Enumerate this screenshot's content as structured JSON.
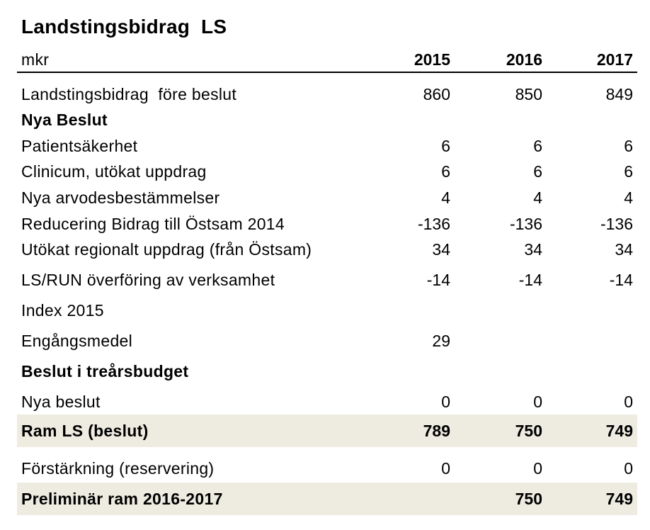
{
  "title": "Landstingsbidrag  LS",
  "header": {
    "label": "mkr",
    "years": [
      "2015",
      "2016",
      "2017"
    ]
  },
  "rows": [
    {
      "label": "Landstingsbidrag  före beslut",
      "values": [
        "860",
        "850",
        "849"
      ]
    },
    {
      "label": "Nya Beslut",
      "values": [
        "",
        "",
        ""
      ]
    },
    {
      "label": "Patientsäkerhet",
      "values": [
        "6",
        "6",
        "6"
      ]
    },
    {
      "label": "Clinicum, utökat uppdrag",
      "values": [
        "6",
        "6",
        "6"
      ]
    },
    {
      "label": "Nya arvodesbestämmelser",
      "values": [
        "4",
        "4",
        "4"
      ]
    },
    {
      "label": "Reducering Bidrag till Östsam 2014",
      "values": [
        "-136",
        "-136",
        "-136"
      ]
    },
    {
      "label": "Utökat regionalt uppdrag (från Östsam)",
      "values": [
        "34",
        "34",
        "34"
      ]
    },
    {
      "label": "LS/RUN överföring av verksamhet",
      "values": [
        "-14",
        "-14",
        "-14"
      ]
    },
    {
      "label": "Index 2015",
      "values": [
        "",
        "",
        ""
      ]
    },
    {
      "label": "Engångsmedel",
      "values": [
        "29",
        "",
        ""
      ]
    },
    {
      "label": "Beslut i treårsbudget",
      "values": [
        "",
        "",
        ""
      ]
    },
    {
      "label": "Nya beslut",
      "values": [
        "0",
        "0",
        "0"
      ]
    },
    {
      "label": "Ram LS (beslut)",
      "values": [
        "789",
        "750",
        "749"
      ]
    },
    {
      "label": "Förstärkning (reservering)",
      "values": [
        "0",
        "0",
        "0"
      ]
    },
    {
      "label": "Preliminär ram 2016-2017",
      "values": [
        "",
        "750",
        "749"
      ]
    }
  ],
  "colors": {
    "shaded_row": "#eeece1",
    "text": "#000000"
  }
}
